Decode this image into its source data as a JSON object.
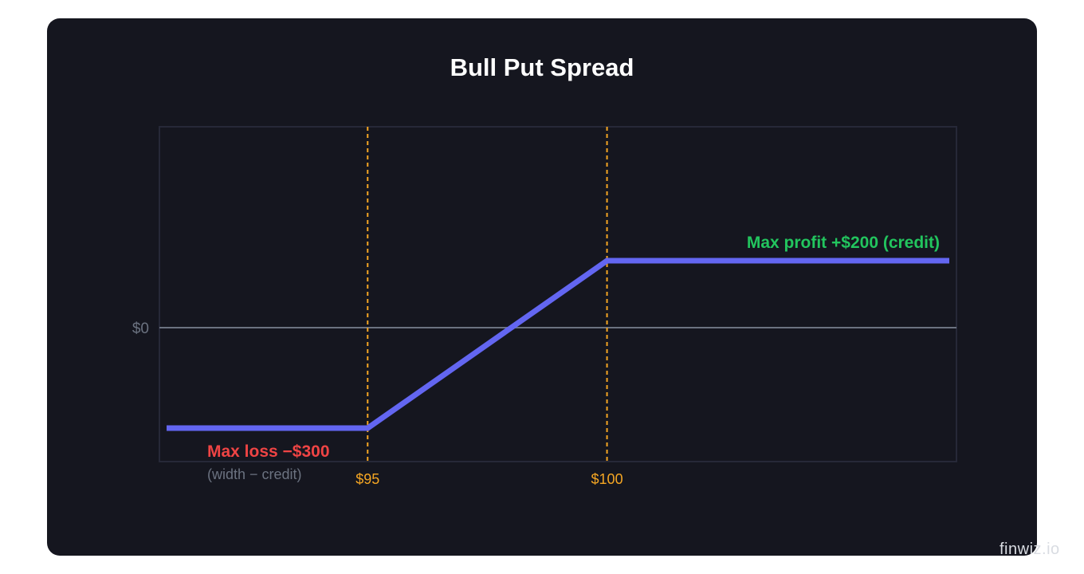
{
  "chart_data": {
    "type": "line",
    "title": "Bull Put Spread",
    "x_ticks": [
      "$95",
      "$100"
    ],
    "y_ticks": [
      "$0"
    ],
    "strikes": [
      95,
      100
    ],
    "xlim": [
      90.65,
      107.3
    ],
    "ylim": [
      -400,
      600
    ],
    "series": [
      {
        "x": [
          90.8,
          95,
          100,
          107.15
        ],
        "y": [
          -300,
          -300,
          200,
          200
        ]
      }
    ],
    "annotations": {
      "max_profit": "Max profit +$200 (credit)",
      "max_loss": "Max loss −$300",
      "max_loss_note": "(width − credit)"
    },
    "grid": false,
    "legend": "none",
    "colors": {
      "payoff": "#6366f1",
      "strike": "#f5a623",
      "zero_line": "#6b7280",
      "frame": "#262838",
      "profit": "#22c55e",
      "loss": "#ef4444",
      "muted": "#6b7280"
    }
  },
  "watermark": "finwiz.io"
}
